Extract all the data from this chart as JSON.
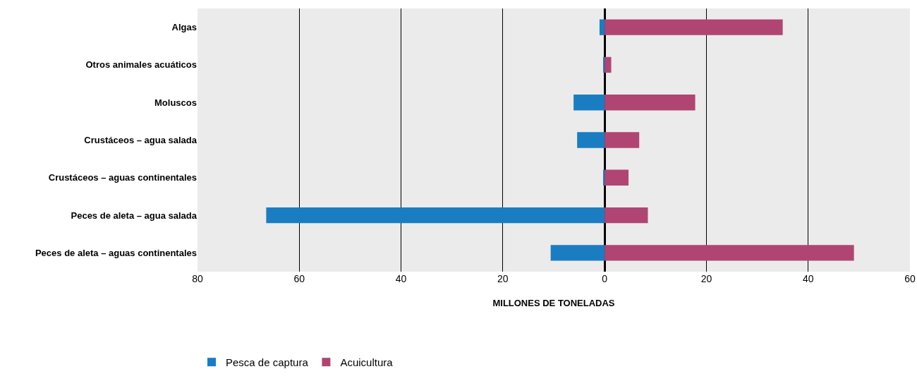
{
  "chart_data": {
    "type": "bar",
    "orientation": "horizontal",
    "xlabel": "MILLONES DE TONELADAS",
    "categories": [
      "Algas",
      "Otros animales acuáticos",
      "Moluscos",
      "Crustáceos – agua salada",
      "Crustáceos – aguas continentales",
      "Peces de aleta – agua salada",
      "Peces de aleta – aguas continentales"
    ],
    "series": [
      {
        "name": "Pesca de captura",
        "color": "#1a7dc2",
        "values": [
          -1.0,
          -0.3,
          -6.1,
          -5.4,
          -0.3,
          -66.5,
          -10.6
        ]
      },
      {
        "name": "Acuicultura",
        "color": "#b04573",
        "values": [
          35.0,
          1.3,
          17.8,
          6.8,
          4.7,
          8.5,
          49.0
        ]
      }
    ],
    "xlim": [
      -80,
      60
    ],
    "xticks": [
      {
        "value": -80,
        "label": "80"
      },
      {
        "value": -60,
        "label": "60"
      },
      {
        "value": -40,
        "label": "40"
      },
      {
        "value": -20,
        "label": "20"
      },
      0,
      20,
      40,
      60
    ],
    "grid": "x",
    "legend": "bottom left",
    "stacked": true
  }
}
